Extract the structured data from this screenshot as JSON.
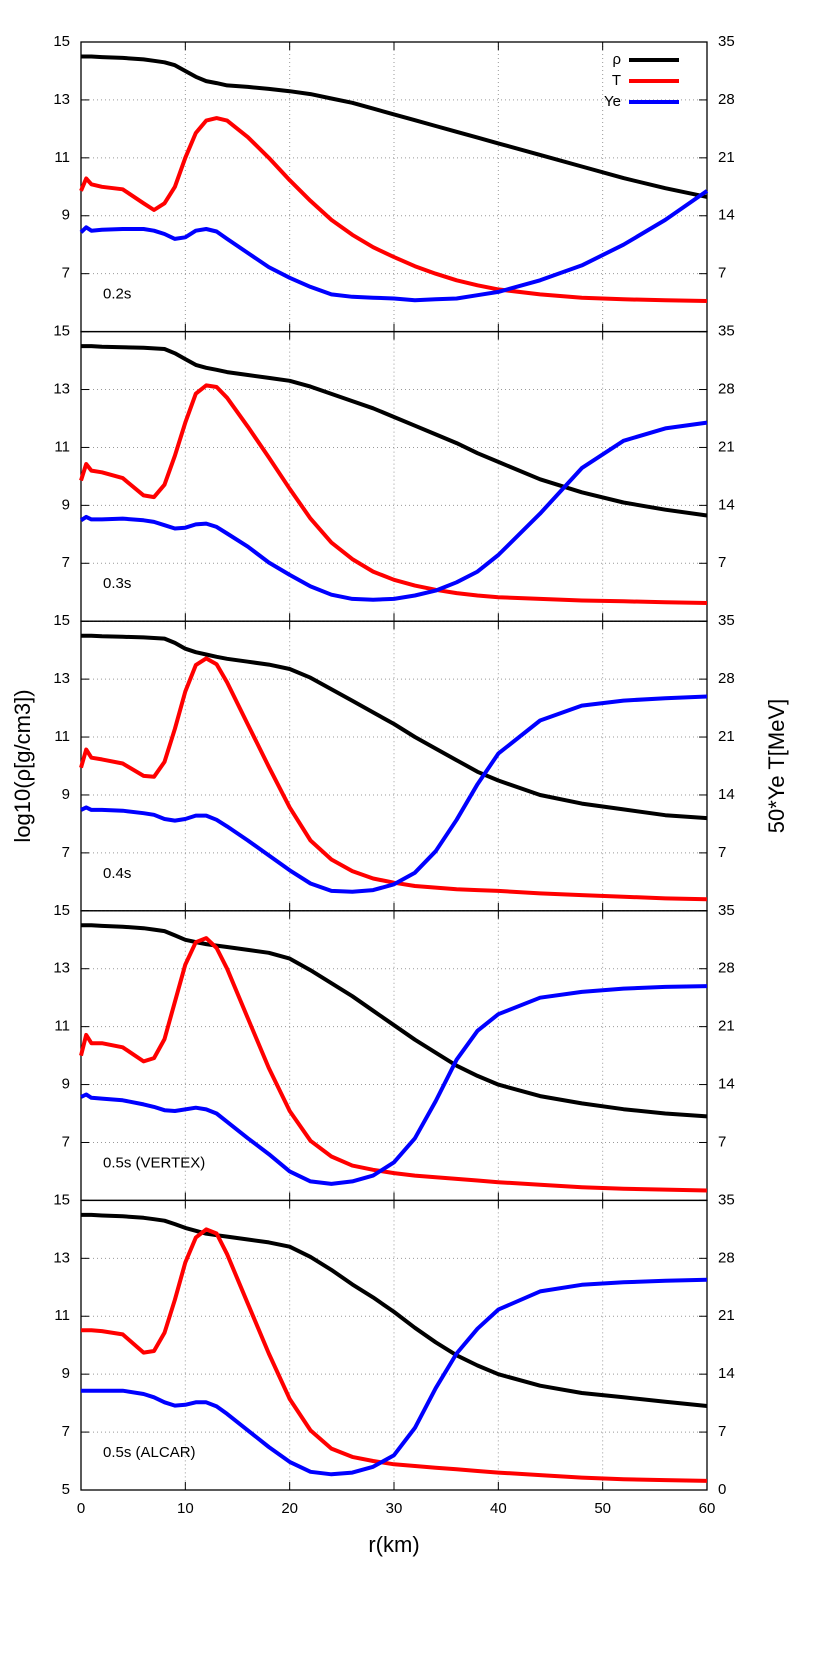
{
  "chart_data": [
    {
      "type": "line",
      "label": "0.2s",
      "legend": "upper right",
      "grid": true,
      "x": [
        0,
        0.5,
        1,
        2,
        4,
        6,
        7,
        8,
        9,
        10,
        11,
        12,
        13,
        14,
        16,
        18,
        20,
        22,
        24,
        26,
        28,
        30,
        32,
        34,
        36,
        38,
        40,
        44,
        48,
        52,
        56,
        60
      ],
      "xlim": [
        0,
        60
      ],
      "xticks": [
        0,
        10,
        20,
        30,
        40,
        50,
        60
      ],
      "ylim": [
        5,
        15
      ],
      "yticks": [
        7,
        9,
        11,
        13,
        15
      ],
      "y2lim": [
        0,
        35
      ],
      "y2ticks": [
        7,
        14,
        21,
        28,
        35
      ],
      "series": [
        {
          "name": "ρ",
          "color": "#000000",
          "values": [
            14.5,
            14.5,
            14.5,
            14.48,
            14.45,
            14.4,
            14.35,
            14.3,
            14.2,
            14.0,
            13.8,
            13.65,
            13.58,
            13.5,
            13.45,
            13.38,
            13.3,
            13.2,
            13.05,
            12.9,
            12.7,
            12.5,
            12.3,
            12.1,
            11.9,
            11.7,
            11.5,
            11.1,
            10.7,
            10.3,
            9.95,
            9.65
          ]
        },
        {
          "name": "T",
          "color": "#ff0000",
          "axis": "y2",
          "values": [
            17,
            18.5,
            17.8,
            17.5,
            17.2,
            15.5,
            14.7,
            15.5,
            17.5,
            21,
            24,
            25.5,
            25.8,
            25.5,
            23.5,
            21,
            18.3,
            15.8,
            13.5,
            11.7,
            10.2,
            9,
            7.9,
            7,
            6.2,
            5.6,
            5.1,
            4.5,
            4.1,
            3.9,
            3.8,
            3.7
          ]
        },
        {
          "name": "Ye",
          "color": "#0000ff",
          "axis": "y2",
          "values": [
            12,
            12.6,
            12.2,
            12.3,
            12.4,
            12.4,
            12.2,
            11.8,
            11.2,
            11.4,
            12.2,
            12.4,
            12.1,
            11.2,
            9.5,
            7.8,
            6.5,
            5.4,
            4.5,
            4.2,
            4.1,
            4.0,
            3.8,
            3.9,
            4.0,
            4.4,
            4.8,
            6.2,
            8.0,
            10.5,
            13.5,
            17
          ]
        }
      ]
    },
    {
      "type": "line",
      "label": "0.3s",
      "grid": true,
      "x": [
        0,
        0.5,
        1,
        2,
        4,
        6,
        7,
        8,
        9,
        10,
        11,
        12,
        13,
        14,
        16,
        18,
        20,
        22,
        24,
        26,
        28,
        30,
        32,
        34,
        36,
        38,
        40,
        44,
        48,
        52,
        56,
        60
      ],
      "xlim": [
        0,
        60
      ],
      "xticks": [
        0,
        10,
        20,
        30,
        40,
        50,
        60
      ],
      "ylim": [
        5,
        15
      ],
      "yticks": [
        7,
        9,
        11,
        13,
        15
      ],
      "y2lim": [
        0,
        35
      ],
      "y2ticks": [
        7,
        14,
        21,
        28,
        35
      ],
      "series": [
        {
          "color": "#000000",
          "values": [
            14.5,
            14.5,
            14.5,
            14.48,
            14.46,
            14.44,
            14.42,
            14.4,
            14.25,
            14.05,
            13.85,
            13.75,
            13.68,
            13.6,
            13.5,
            13.4,
            13.3,
            13.1,
            12.85,
            12.6,
            12.35,
            12.05,
            11.75,
            11.45,
            11.15,
            10.8,
            10.5,
            9.9,
            9.45,
            9.1,
            8.85,
            8.65
          ]
        },
        {
          "color": "#ff0000",
          "axis": "y2",
          "values": [
            17,
            19,
            18.2,
            18,
            17.3,
            15.2,
            15,
            16.5,
            20,
            24,
            27.5,
            28.5,
            28.3,
            27,
            23.5,
            19.8,
            16,
            12.4,
            9.5,
            7.5,
            6,
            5,
            4.3,
            3.8,
            3.4,
            3.1,
            2.9,
            2.7,
            2.5,
            2.4,
            2.3,
            2.2
          ]
        },
        {
          "color": "#0000ff",
          "axis": "y2",
          "values": [
            12.2,
            12.6,
            12.3,
            12.3,
            12.4,
            12.2,
            12.0,
            11.6,
            11.2,
            11.3,
            11.7,
            11.8,
            11.4,
            10.6,
            9,
            7.1,
            5.6,
            4.2,
            3.2,
            2.7,
            2.6,
            2.7,
            3.1,
            3.7,
            4.7,
            6,
            8,
            13,
            18.5,
            21.8,
            23.3,
            24
          ]
        }
      ]
    },
    {
      "type": "line",
      "label": "0.4s",
      "grid": true,
      "ylabel": "log10(ρ[g/cm3])",
      "y2label": "50*Ye    T[MeV]",
      "x": [
        0,
        0.5,
        1,
        2,
        4,
        6,
        7,
        8,
        9,
        10,
        11,
        12,
        13,
        14,
        16,
        18,
        20,
        22,
        24,
        26,
        28,
        30,
        32,
        34,
        36,
        38,
        40,
        44,
        48,
        52,
        56,
        60
      ],
      "xlim": [
        0,
        60
      ],
      "xticks": [
        0,
        10,
        20,
        30,
        40,
        50,
        60
      ],
      "ylim": [
        5,
        15
      ],
      "yticks": [
        7,
        9,
        11,
        13,
        15
      ],
      "y2lim": [
        0,
        35
      ],
      "y2ticks": [
        7,
        14,
        21,
        28,
        35
      ],
      "series": [
        {
          "color": "#000000",
          "values": [
            14.5,
            14.5,
            14.5,
            14.48,
            14.46,
            14.44,
            14.42,
            14.4,
            14.25,
            14.05,
            13.93,
            13.85,
            13.77,
            13.7,
            13.6,
            13.5,
            13.35,
            13.05,
            12.65,
            12.25,
            11.85,
            11.45,
            11.0,
            10.6,
            10.2,
            9.8,
            9.5,
            9.0,
            8.7,
            8.5,
            8.3,
            8.2
          ]
        },
        {
          "color": "#ff0000",
          "axis": "y2",
          "values": [
            17.3,
            19.5,
            18.5,
            18.3,
            17.8,
            16.3,
            16.2,
            18,
            22,
            26.5,
            29.7,
            30.5,
            29.8,
            27.6,
            22.5,
            17.4,
            12.5,
            8.5,
            6.2,
            4.8,
            3.9,
            3.4,
            3.0,
            2.8,
            2.6,
            2.5,
            2.4,
            2.1,
            1.9,
            1.7,
            1.5,
            1.4
          ]
        },
        {
          "color": "#0000ff",
          "axis": "y2",
          "values": [
            12.2,
            12.5,
            12.2,
            12.2,
            12.1,
            11.8,
            11.6,
            11.1,
            10.9,
            11.1,
            11.5,
            11.5,
            11,
            10.2,
            8.5,
            6.7,
            4.9,
            3.3,
            2.4,
            2.3,
            2.5,
            3.2,
            4.6,
            7.2,
            11,
            15.3,
            19,
            23,
            24.8,
            25.4,
            25.7,
            25.9
          ]
        }
      ]
    },
    {
      "type": "line",
      "label": "0.5s (VERTEX)",
      "grid": true,
      "x": [
        0,
        0.5,
        1,
        2,
        4,
        6,
        7,
        8,
        9,
        10,
        11,
        12,
        13,
        14,
        16,
        18,
        20,
        22,
        24,
        26,
        28,
        30,
        32,
        34,
        36,
        38,
        40,
        44,
        48,
        52,
        56,
        60
      ],
      "xlim": [
        0,
        60
      ],
      "xticks": [
        0,
        10,
        20,
        30,
        40,
        50,
        60
      ],
      "ylim": [
        5,
        15
      ],
      "yticks": [
        7,
        9,
        11,
        13,
        15
      ],
      "y2lim": [
        0,
        35
      ],
      "y2ticks": [
        7,
        14,
        21,
        28,
        35
      ],
      "series": [
        {
          "color": "#000000",
          "values": [
            14.5,
            14.5,
            14.5,
            14.48,
            14.45,
            14.4,
            14.35,
            14.3,
            14.15,
            14.0,
            13.92,
            13.85,
            13.8,
            13.75,
            13.65,
            13.55,
            13.35,
            12.95,
            12.5,
            12.05,
            11.55,
            11.05,
            10.55,
            10.1,
            9.65,
            9.3,
            9.0,
            8.6,
            8.35,
            8.15,
            8.0,
            7.9
          ]
        },
        {
          "color": "#ff0000",
          "axis": "y2",
          "values": [
            17.5,
            20,
            19,
            19,
            18.5,
            16.8,
            17.2,
            19.5,
            24,
            28.5,
            31.2,
            31.7,
            30.5,
            28,
            22,
            16,
            10.8,
            7.2,
            5.3,
            4.2,
            3.7,
            3.3,
            3.0,
            2.8,
            2.6,
            2.4,
            2.2,
            1.9,
            1.6,
            1.4,
            1.3,
            1.2
          ]
        },
        {
          "color": "#0000ff",
          "axis": "y2",
          "values": [
            12.5,
            12.8,
            12.4,
            12.3,
            12.1,
            11.6,
            11.3,
            10.9,
            10.8,
            11.0,
            11.2,
            11.0,
            10.5,
            9.5,
            7.5,
            5.6,
            3.5,
            2.3,
            2.0,
            2.3,
            3.0,
            4.6,
            7.5,
            12,
            17,
            20.5,
            22.5,
            24.5,
            25.2,
            25.6,
            25.8,
            25.9
          ]
        }
      ]
    },
    {
      "type": "line",
      "label": "0.5s (ALCAR)",
      "grid": true,
      "xlabel": "r(km)",
      "x": [
        0,
        0.5,
        1,
        2,
        4,
        6,
        7,
        8,
        9,
        10,
        11,
        12,
        13,
        14,
        16,
        18,
        20,
        22,
        24,
        26,
        28,
        30,
        32,
        34,
        36,
        38,
        40,
        44,
        48,
        52,
        56,
        60
      ],
      "xlim": [
        0,
        60
      ],
      "xticks": [
        0,
        10,
        20,
        30,
        40,
        50,
        60
      ],
      "ylim": [
        5,
        15
      ],
      "yticks": [
        5,
        7,
        9,
        11,
        13,
        15
      ],
      "y2lim": [
        0,
        35
      ],
      "y2ticks": [
        0,
        7,
        14,
        21,
        28,
        35
      ],
      "series": [
        {
          "color": "#000000",
          "values": [
            14.5,
            14.5,
            14.5,
            14.48,
            14.45,
            14.4,
            14.35,
            14.3,
            14.18,
            14.05,
            13.95,
            13.85,
            13.8,
            13.75,
            13.65,
            13.55,
            13.4,
            13.05,
            12.6,
            12.1,
            11.65,
            11.15,
            10.6,
            10.1,
            9.65,
            9.3,
            9.0,
            8.6,
            8.35,
            8.2,
            8.05,
            7.9
          ]
        },
        {
          "color": "#ff0000",
          "axis": "y2",
          "values": [
            19.3,
            19.3,
            19.3,
            19.2,
            18.8,
            16.6,
            16.8,
            19,
            23,
            27.5,
            30.5,
            31.5,
            31,
            28.5,
            22.5,
            16.5,
            11,
            7.2,
            5,
            4,
            3.5,
            3.1,
            2.9,
            2.7,
            2.5,
            2.3,
            2.1,
            1.8,
            1.5,
            1.3,
            1.2,
            1.1
          ]
        },
        {
          "color": "#0000ff",
          "axis": "y2",
          "values": [
            12.0,
            12.0,
            12.0,
            12.0,
            12.0,
            11.6,
            11.2,
            10.6,
            10.2,
            10.3,
            10.6,
            10.6,
            10.1,
            9.2,
            7.2,
            5.2,
            3.4,
            2.2,
            1.9,
            2.1,
            2.8,
            4.2,
            7.5,
            12.3,
            16.5,
            19.5,
            21.8,
            24,
            24.8,
            25.1,
            25.3,
            25.4
          ]
        }
      ]
    }
  ]
}
